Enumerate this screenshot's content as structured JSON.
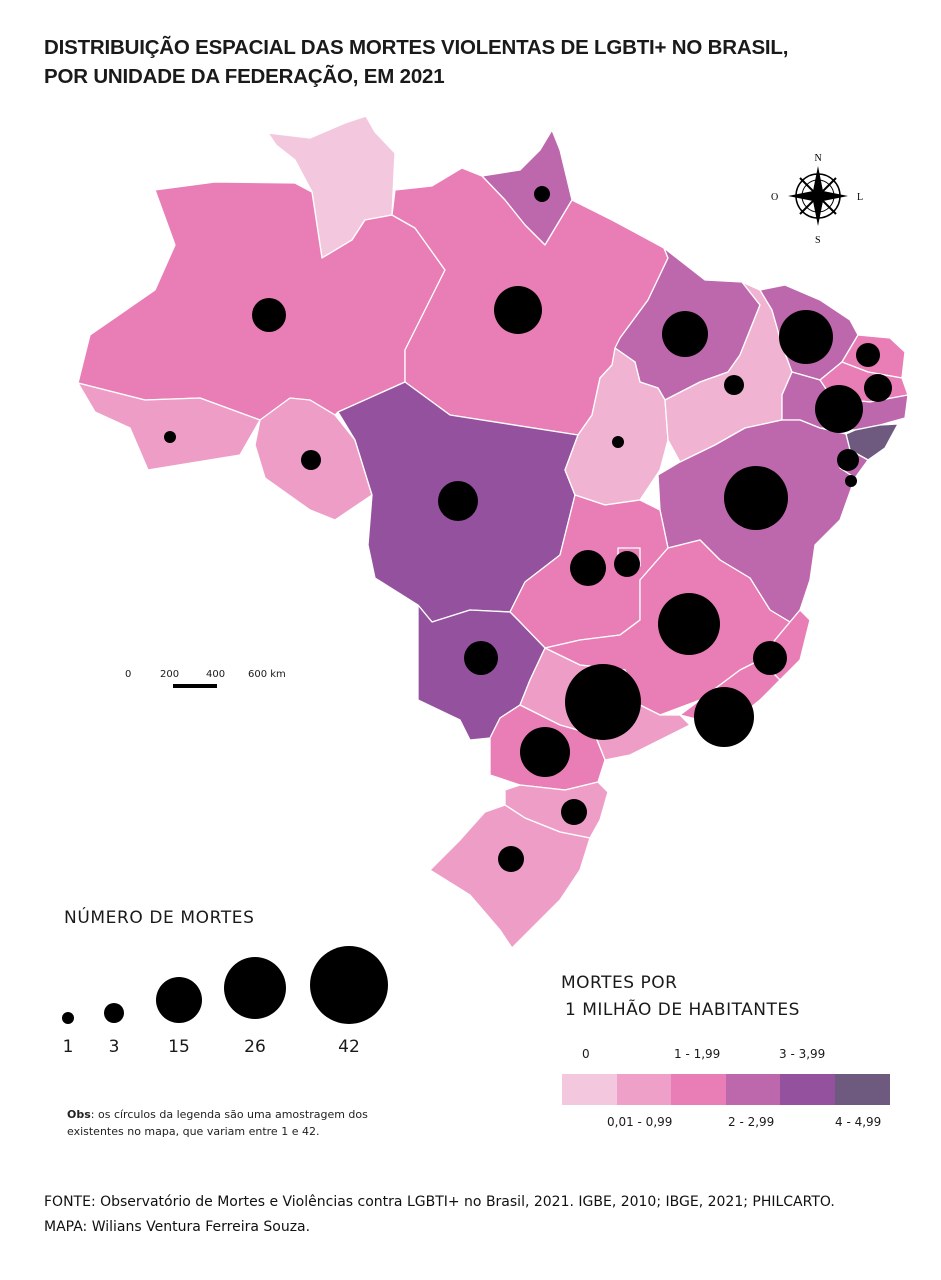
{
  "title": {
    "line1": "DISTRIBUIÇÃO ESPACIAL DAS MORTES VIOLENTAS DE LGBTI+ NO BRASIL,",
    "line2": "POR UNIDADE DA FEDERAÇÃO, EM 2021"
  },
  "compass": {
    "north": "N",
    "south": "S",
    "east": "L",
    "west": "O",
    "icon": "compass-rose-icon"
  },
  "scale_bar": {
    "labels": [
      "0",
      "200",
      "400",
      "600 km"
    ]
  },
  "size_legend": {
    "title": "NÚMERO DE MORTES",
    "labels": [
      "1",
      "3",
      "15",
      "26",
      "42"
    ],
    "note_bold": "Obs",
    "note_text": ": os círculos da legenda são uma amostragem dos existentes no mapa, que variam entre 1 e 42."
  },
  "rate_legend": {
    "title_line1": "MORTES POR",
    "title_line2": "1 MILHÃO DE HABITANTES",
    "classes": [
      {
        "label": "0",
        "color": "#f3c8de"
      },
      {
        "label": "0,01 - 0,99",
        "color": "#eea0c8"
      },
      {
        "label": "1 - 1,99",
        "color": "#e97db5"
      },
      {
        "label": "2 - 2,99",
        "color": "#bd67ac"
      },
      {
        "label": "3 - 3,99",
        "color": "#93519e"
      },
      {
        "label": "4 - 4,99",
        "color": "#6e5a7e"
      }
    ]
  },
  "source": {
    "line1": "FONTE: Observatório de Mortes e Violências contra LGBTI+ no Brasil, 2021. IGBE, 2010; IBGE, 2021; PHILCARTO.",
    "line2": "MAPA: Wilians Ventura Ferreira Souza."
  },
  "colors": {
    "background": "#ffffff",
    "circle": "#000000",
    "border": "#ffffff"
  }
}
